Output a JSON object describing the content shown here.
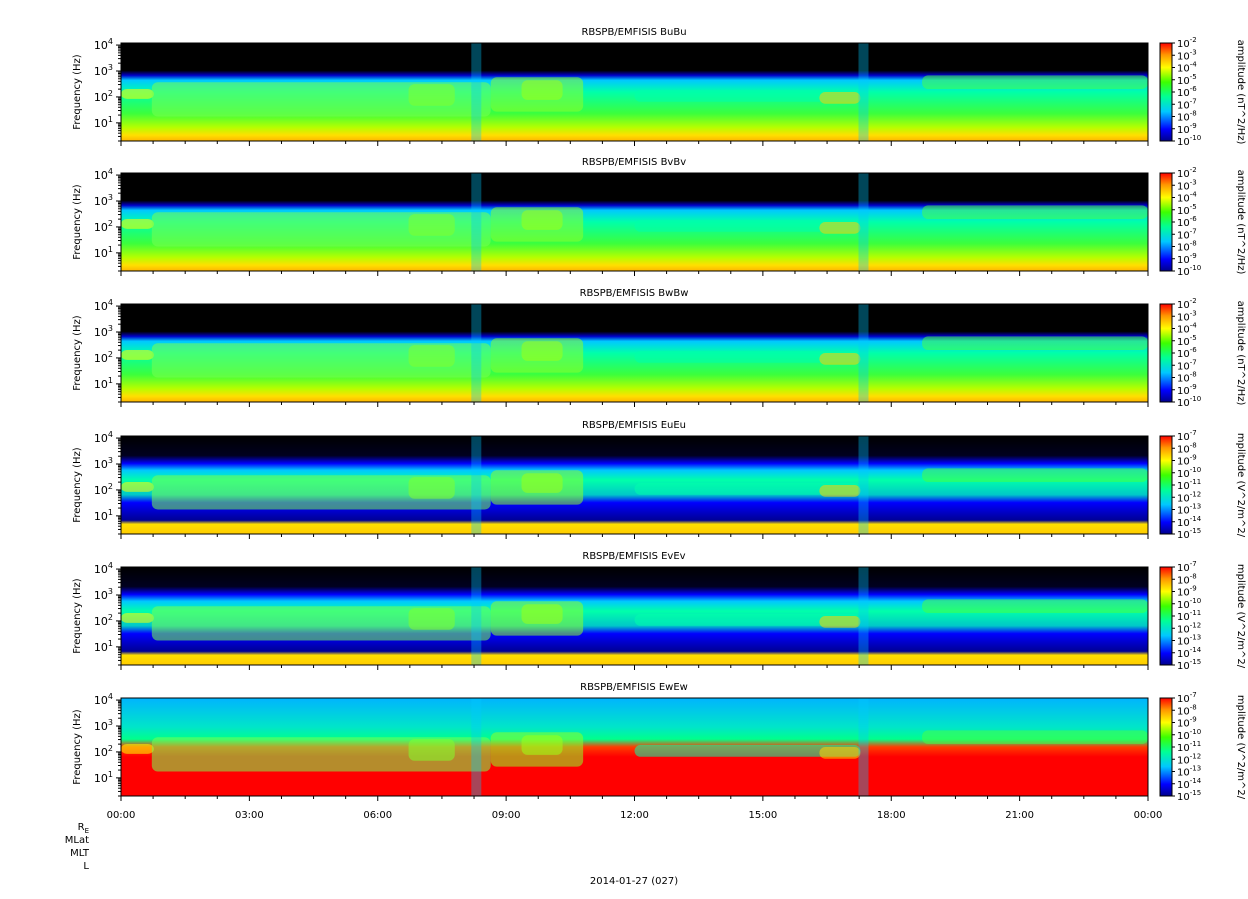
{
  "figure": {
    "date_label": "2014-01-27 (027)",
    "ephemeris_labels": [
      "R_E",
      "MLat",
      "MLT",
      "L"
    ]
  },
  "chart_data": [
    {
      "type": "heatmap",
      "title": "RBSPB/EMFISIS  BuBu",
      "ylabel": "Frequency (Hz)",
      "yscale": "log",
      "ylim": [
        2,
        12000
      ],
      "yticks": [
        "10^1",
        "10^2",
        "10^3",
        "10^4"
      ],
      "x_ticks": [
        "00:00",
        "03:00",
        "06:00",
        "09:00",
        "12:00",
        "15:00",
        "18:00",
        "21:00",
        "00:00"
      ],
      "colorbar": {
        "label": "amplitude (nT^2/Hz)",
        "scale": "log",
        "range": [
          1e-10,
          0.01
        ],
        "ticks": [
          "10^-2",
          "10^-3",
          "10^-4",
          "10^-5",
          "10^-6",
          "10^-7",
          "10^-8",
          "10^-9",
          "10^-10"
        ]
      }
    },
    {
      "type": "heatmap",
      "title": "RBSPB/EMFISIS  BvBv",
      "ylabel": "Frequency (Hz)",
      "yscale": "log",
      "ylim": [
        2,
        12000
      ],
      "yticks": [
        "10^1",
        "10^2",
        "10^3",
        "10^4"
      ],
      "x_ticks": [
        "00:00",
        "03:00",
        "06:00",
        "09:00",
        "12:00",
        "15:00",
        "18:00",
        "21:00",
        "00:00"
      ],
      "colorbar": {
        "label": "amplitude (nT^2/Hz)",
        "scale": "log",
        "range": [
          1e-10,
          0.01
        ],
        "ticks": [
          "10^-2",
          "10^-3",
          "10^-4",
          "10^-5",
          "10^-6",
          "10^-7",
          "10^-8",
          "10^-9",
          "10^-10"
        ]
      }
    },
    {
      "type": "heatmap",
      "title": "RBSPB/EMFISIS  BwBw",
      "ylabel": "Frequency (Hz)",
      "yscale": "log",
      "ylim": [
        2,
        12000
      ],
      "yticks": [
        "10^1",
        "10^2",
        "10^3",
        "10^4"
      ],
      "x_ticks": [
        "00:00",
        "03:00",
        "06:00",
        "09:00",
        "12:00",
        "15:00",
        "18:00",
        "21:00",
        "00:00"
      ],
      "colorbar": {
        "label": "amplitude (nT^2/Hz)",
        "scale": "log",
        "range": [
          1e-10,
          0.01
        ],
        "ticks": [
          "10^-2",
          "10^-3",
          "10^-4",
          "10^-5",
          "10^-6",
          "10^-7",
          "10^-8",
          "10^-9",
          "10^-10"
        ]
      }
    },
    {
      "type": "heatmap",
      "title": "RBSPB/EMFISIS  EuEu",
      "ylabel": "Frequency (Hz)",
      "yscale": "log",
      "ylim": [
        2,
        12000
      ],
      "yticks": [
        "10^1",
        "10^2",
        "10^3",
        "10^4"
      ],
      "x_ticks": [
        "00:00",
        "03:00",
        "06:00",
        "09:00",
        "12:00",
        "15:00",
        "18:00",
        "21:00",
        "00:00"
      ],
      "colorbar": {
        "label": "mplitude (V^2/m^2/",
        "scale": "log",
        "range": [
          1e-15,
          1e-07
        ],
        "ticks": [
          "10^-7",
          "10^-8",
          "10^-9",
          "10^-10",
          "10^-11",
          "10^-12",
          "10^-13",
          "10^-14",
          "10^-15"
        ]
      }
    },
    {
      "type": "heatmap",
      "title": "RBSPB/EMFISIS  EvEv",
      "ylabel": "Frequency (Hz)",
      "yscale": "log",
      "ylim": [
        2,
        12000
      ],
      "yticks": [
        "10^1",
        "10^2",
        "10^3",
        "10^4"
      ],
      "x_ticks": [
        "00:00",
        "03:00",
        "06:00",
        "09:00",
        "12:00",
        "15:00",
        "18:00",
        "21:00",
        "00:00"
      ],
      "colorbar": {
        "label": "mplitude (V^2/m^2/",
        "scale": "log",
        "range": [
          1e-15,
          1e-07
        ],
        "ticks": [
          "10^-7",
          "10^-8",
          "10^-9",
          "10^-10",
          "10^-11",
          "10^-12",
          "10^-13",
          "10^-14",
          "10^-15"
        ]
      }
    },
    {
      "type": "heatmap",
      "title": "RBSPB/EMFISIS  EwEw",
      "ylabel": "Frequency (Hz)",
      "yscale": "log",
      "ylim": [
        2,
        12000
      ],
      "yticks": [
        "10^1",
        "10^2",
        "10^3",
        "10^4"
      ],
      "x_ticks": [
        "00:00",
        "03:00",
        "06:00",
        "09:00",
        "12:00",
        "15:00",
        "18:00",
        "21:00",
        "00:00"
      ],
      "colorbar": {
        "label": "mplitude (V^2/m^2/",
        "scale": "log",
        "range": [
          1e-15,
          1e-07
        ],
        "ticks": [
          "10^-7",
          "10^-8",
          "10^-9",
          "10^-10",
          "10^-11",
          "10^-12",
          "10^-13",
          "10^-14",
          "10^-15"
        ]
      }
    }
  ]
}
